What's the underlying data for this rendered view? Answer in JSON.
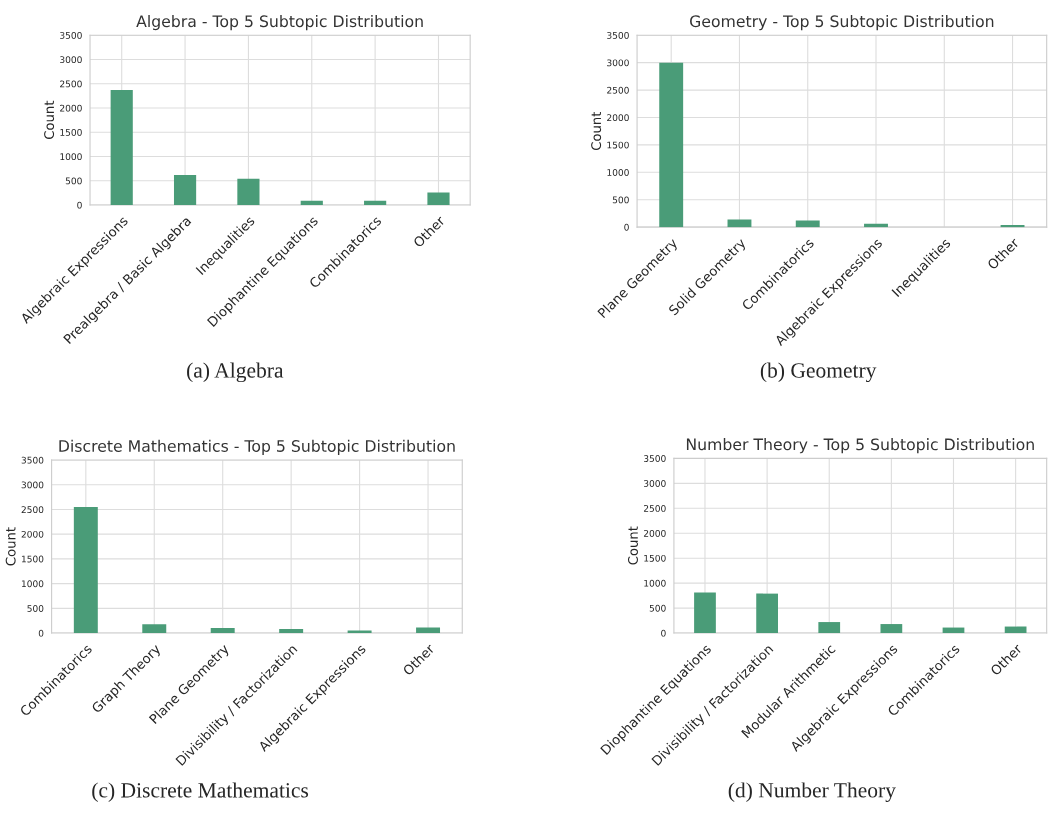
{
  "chart_data": [
    {
      "type": "bar",
      "title": "Algebra - Top 5 Subtopic Distribution",
      "ylabel": "Count",
      "categories": [
        "Algebraic Expressions",
        "Prealgebra / Basic Algebra",
        "Inequalities",
        "Diophantine Equations",
        "Combinatorics",
        "Other"
      ],
      "values": [
        2370,
        620,
        540,
        90,
        90,
        260
      ],
      "color": "#4a9c78",
      "ylim": [
        0,
        3500
      ],
      "yticks": [
        0,
        500,
        1000,
        1500,
        2000,
        2500,
        3000,
        3500
      ],
      "grid": true,
      "annotations": [
        "(a) Algebra"
      ]
    },
    {
      "type": "bar",
      "title": "Geometry - Top 5 Subtopic Distribution",
      "ylabel": "Count",
      "categories": [
        "Plane Geometry",
        "Solid Geometry",
        "Combinatorics",
        "Algebraic Expressions",
        "Inequalities",
        "Other"
      ],
      "values": [
        3000,
        140,
        120,
        60,
        0,
        40
      ],
      "color": "#4a9c78",
      "ylim": [
        0,
        3500
      ],
      "yticks": [
        0,
        500,
        1000,
        1500,
        2000,
        2500,
        3000,
        3500
      ],
      "grid": true,
      "annotations": [
        "(b) Geometry"
      ]
    },
    {
      "type": "bar",
      "title": "Discrete Mathematics - Top 5 Subtopic Distribution",
      "ylabel": "Count",
      "categories": [
        "Combinatorics",
        "Graph Theory",
        "Plane Geometry",
        "Divisibility / Factorization",
        "Algebraic Expressions",
        "Other"
      ],
      "values": [
        2550,
        180,
        100,
        80,
        50,
        110
      ],
      "color": "#4a9c78",
      "ylim": [
        0,
        3500
      ],
      "yticks": [
        0,
        500,
        1000,
        1500,
        2000,
        2500,
        3000,
        3500
      ],
      "grid": true,
      "annotations": [
        "(c) Discrete Mathematics"
      ]
    },
    {
      "type": "bar",
      "title": "Number Theory - Top 5 Subtopic Distribution",
      "ylabel": "Count",
      "categories": [
        "Diophantine Equations",
        "Divisibility / Factorization",
        "Modular Arithmetic",
        "Algebraic Expressions",
        "Combinatorics",
        "Other"
      ],
      "values": [
        810,
        790,
        220,
        180,
        110,
        130
      ],
      "color": "#4a9c78",
      "ylim": [
        0,
        3500
      ],
      "yticks": [
        0,
        500,
        1000,
        1500,
        2000,
        2500,
        3000,
        3500
      ],
      "grid": true,
      "annotations": [
        "(d) Number Theory"
      ]
    }
  ]
}
